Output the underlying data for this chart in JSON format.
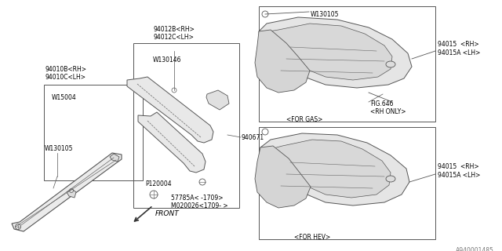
{
  "bg_color": "#ffffff",
  "line_color": "#666666",
  "text_color": "#000000",
  "diagram_code": "A940001485",
  "fs": 5.5,
  "labels": {
    "94012B": "94012B<RH>\n94012C<LH>",
    "94010B": "94010B<RH>\n94010C<LH>",
    "W15004": "W15004",
    "W130105_left": "W130105",
    "W130146": "W130146",
    "94067I": "940671",
    "P120004": "P120004",
    "57785A": "57785A< -1709>\nM020026<1709- >",
    "W130105_top": "W130105",
    "94015_top": "94015  <RH>\n94015A <LH>",
    "FIG646": "FIG.646\n<RH ONLY>",
    "FOR_GAS": "<FOR GAS>",
    "94015_bot": "94015  <RH>\n94015A <LH>",
    "FOR_HEV": "<FOR HEV>"
  }
}
